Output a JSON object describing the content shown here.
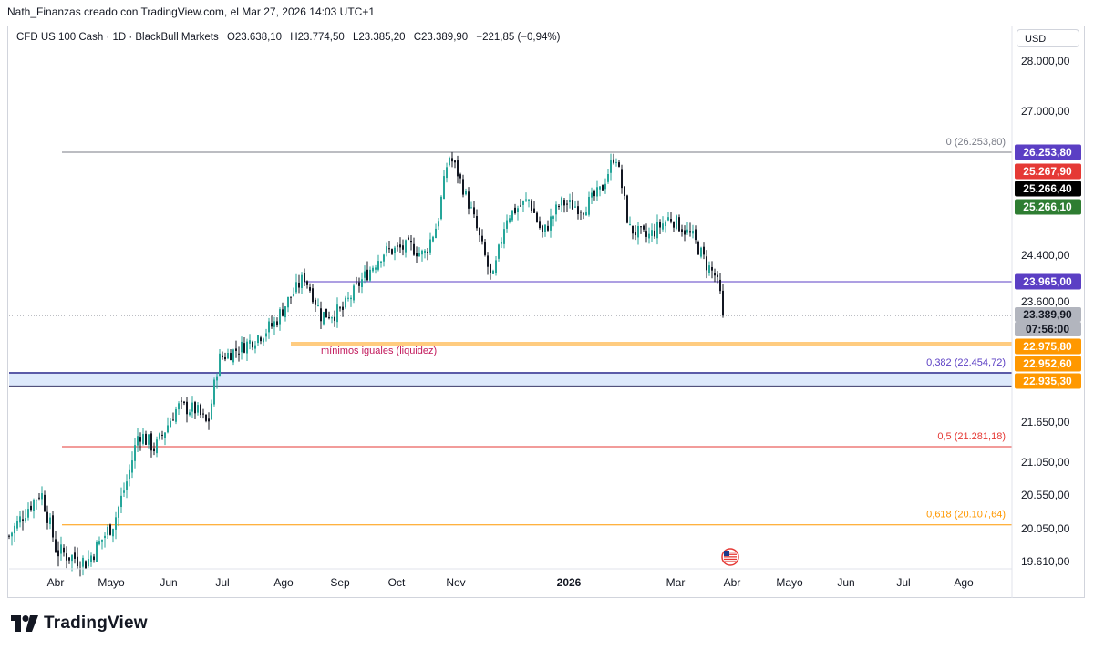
{
  "header": {
    "text": "Nath_Finanzas creado con TradingView.com, el Mar 27, 2026 14:03 UTC+1"
  },
  "legend": {
    "symbol": "CFD US 100 Cash · 1D · BlackBull Markets",
    "open": "O23.638,10",
    "high": "H23.774,50",
    "low": "L23.385,20",
    "close": "C23.389,90",
    "change": "−221,85 (−0,94%)"
  },
  "currency": "USD",
  "footer": {
    "brand": "TradingView",
    "logo_icon": "tradingview-logo-icon"
  },
  "colors": {
    "up": "#26a69a",
    "down": "#131722",
    "accent_purple": "#5b3fc4",
    "red": "#e53935",
    "orange": "#ff9800",
    "green": "#2e7d32",
    "last_price": "#b2b5be",
    "zone_fill": "#dde9fb",
    "zone_border": "#5b5ba8"
  },
  "chart_data": {
    "type": "candlestick",
    "period": "1D",
    "x_ticks": [
      "Abr",
      "Mayo",
      "Jun",
      "Jul",
      "Ago",
      "Sep",
      "Oct",
      "Nov",
      "2026",
      "Mar",
      "Abr",
      "Mayo",
      "Jun",
      "Jul",
      "Ago"
    ],
    "y_ticks": [
      "28.000,00",
      "27.000,00",
      "24.400,00",
      "23.600,00",
      "21.650,00",
      "21.050,00",
      "20.550,00",
      "20.050,00",
      "19.610,00"
    ],
    "y_tick_values": [
      28000,
      27000,
      24400,
      23600,
      21650,
      21050,
      20550,
      20050,
      19610
    ],
    "y_range": [
      19500,
      28500
    ],
    "close_series": [
      {
        "label": "Abr",
        "value": 19900
      },
      {
        "label": "Mayo",
        "value": 19800
      },
      {
        "label": "Jun",
        "value": 21400
      },
      {
        "label": "Jul",
        "value": 22500
      },
      {
        "label": "Ago",
        "value": 23300
      },
      {
        "label": "Sep",
        "value": 23400
      },
      {
        "label": "Oct",
        "value": 24900
      },
      {
        "label": "Nov",
        "value": 25500
      },
      {
        "label": "2026",
        "value": 25250
      },
      {
        "label": "Mar",
        "value": 24800
      },
      {
        "label": "Abr",
        "value": 23389.9
      }
    ],
    "annotations": [
      {
        "name": "fib-0",
        "label": "0 (26.253,80)",
        "value": 26253.8,
        "color": "#787b86"
      },
      {
        "name": "fib-0382",
        "label": "0,382 (22.454,72)",
        "value": 22454.72,
        "color": "#5b3fc4"
      },
      {
        "name": "fib-05",
        "label": "0,5 (21.281,18)",
        "value": 21281.18,
        "color": "#e53935"
      },
      {
        "name": "fib-0618",
        "label": "0,618 (20.107,64)",
        "value": 20107.64,
        "color": "#ff9800"
      },
      {
        "name": "resistance-line",
        "label": "",
        "value": 23965.0,
        "color": "#5b3fc4"
      },
      {
        "name": "equal-lows-line",
        "label": "mínimos iguales (liquidez)",
        "value": 22975.8,
        "color": "#ff9800"
      }
    ],
    "demand_zone": {
      "top": 22454.72,
      "bottom": 22240
    },
    "price_labels": [
      {
        "text": "26.253,80",
        "bg": "#5b3fc4"
      },
      {
        "text": "25.267,90",
        "bg": "#e53935"
      },
      {
        "text": "25.266,40",
        "bg": "#000000"
      },
      {
        "text": "25.266,10",
        "bg": "#2e7d32"
      },
      {
        "text": "23.965,00",
        "bg": "#5b3fc4"
      },
      {
        "text": "23.389,90",
        "bg": "#b2b5be"
      },
      {
        "text": "07:56:00",
        "bg": "#b2b5be"
      },
      {
        "text": "22.975,80",
        "bg": "#ff9800"
      },
      {
        "text": "22.952,60",
        "bg": "#ff9800"
      },
      {
        "text": "22.935,30",
        "bg": "#ff9800"
      }
    ],
    "last_price": 23389.9
  }
}
